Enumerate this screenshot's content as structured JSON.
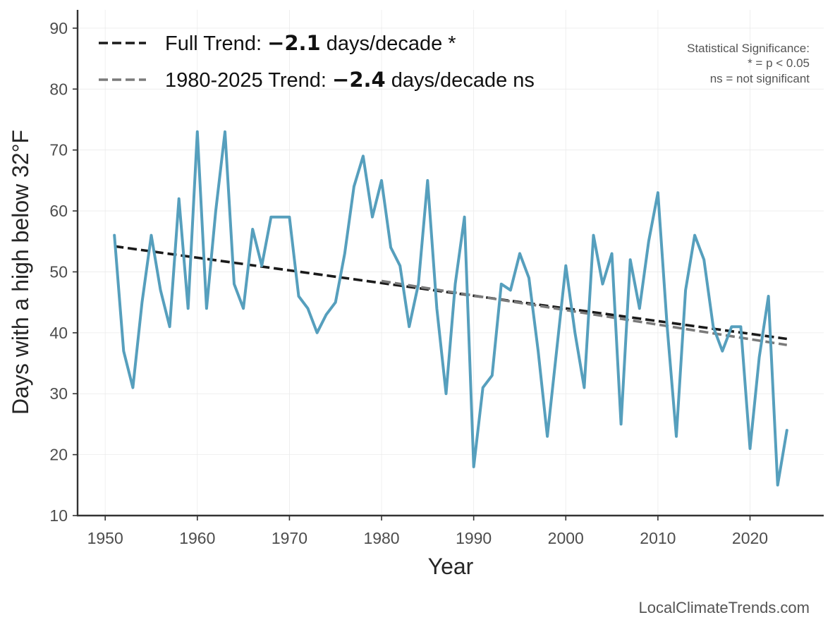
{
  "chart_data": {
    "type": "line",
    "xlabel": "Year",
    "ylabel": "Days with a high below 32°F",
    "xlim": [
      1947,
      2028
    ],
    "ylim": [
      10,
      93
    ],
    "x_ticks": [
      1950,
      1960,
      1970,
      1980,
      1990,
      2000,
      2010,
      2020
    ],
    "y_ticks": [
      10,
      20,
      30,
      40,
      50,
      60,
      70,
      80,
      90
    ],
    "grid": true,
    "legend_position": "top-left",
    "series": [
      {
        "x": [
          1951,
          1952,
          1953,
          1954,
          1955,
          1956,
          1957,
          1958,
          1959,
          1960,
          1961,
          1962,
          1963,
          1964,
          1965,
          1966,
          1967,
          1968,
          1969,
          1970,
          1971,
          1972,
          1973,
          1974,
          1975,
          1976,
          1977,
          1978,
          1979,
          1980,
          1981,
          1982,
          1983,
          1984,
          1985,
          1986,
          1987,
          1988,
          1989,
          1990,
          1991,
          1992,
          1993,
          1994,
          1995,
          1996,
          1997,
          1998,
          1999,
          2000,
          2001,
          2002,
          2003,
          2004,
          2005,
          2006,
          2007,
          2008,
          2009,
          2010,
          2011,
          2012,
          2013,
          2014,
          2015,
          2016,
          2017,
          2018,
          2019,
          2020,
          2021,
          2022,
          2023,
          2024
        ],
        "values": [
          56,
          37,
          31,
          45,
          56,
          47,
          41,
          62,
          44,
          73,
          44,
          60,
          73,
          48,
          44,
          57,
          51,
          59,
          59,
          59,
          46,
          44,
          40,
          43,
          45,
          53,
          64,
          69,
          59,
          65,
          54,
          51,
          41,
          48,
          65,
          44,
          30,
          48,
          59,
          18,
          31,
          33,
          48,
          47,
          53,
          49,
          37,
          23,
          37,
          51,
          40,
          31,
          56,
          48,
          53,
          25,
          52,
          44,
          55,
          63,
          41,
          23,
          47,
          56,
          52,
          41,
          37,
          41,
          41,
          21,
          36,
          46,
          15,
          24
        ],
        "color": "#569fbd"
      }
    ],
    "trend_lines": [
      {
        "label": "Full Trend:",
        "slope_text": "−2.1",
        "unit_text": "days/decade *",
        "x": [
          1951,
          2024
        ],
        "y": [
          54.2,
          39.0
        ],
        "color": "#1a1a1a"
      },
      {
        "label": "1980-2025 Trend:",
        "slope_text": "−2.4",
        "unit_text": "days/decade ns",
        "x": [
          1980,
          2024
        ],
        "y": [
          48.5,
          38.0
        ],
        "color": "#7a7a7a"
      }
    ],
    "significance_note": [
      "Statistical Significance:",
      "* = p < 0.05",
      "ns = not significant"
    ]
  },
  "credit": "LocalClimateTrends.com"
}
